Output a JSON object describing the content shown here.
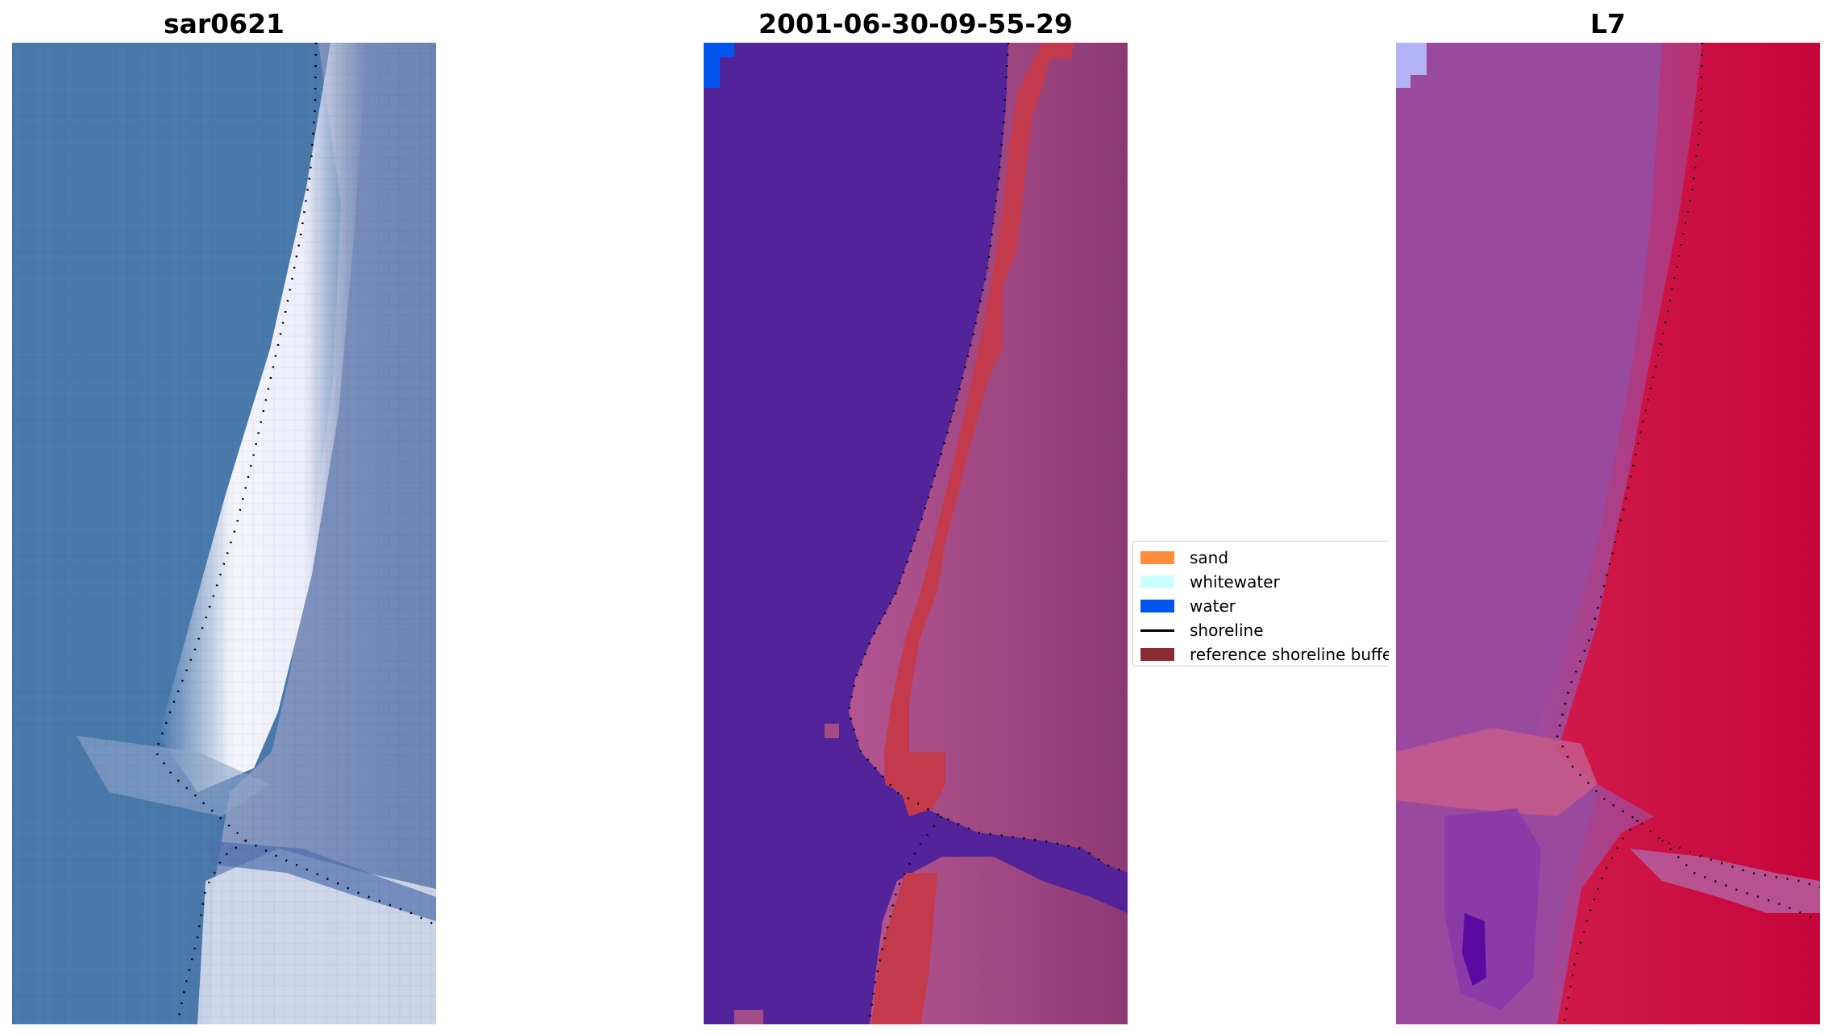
{
  "panels": [
    {
      "id": "rgb",
      "title": "sar0621"
    },
    {
      "id": "classified",
      "title": "2001-06-30-09-55-29"
    },
    {
      "id": "mndwi",
      "title": "L7"
    }
  ],
  "legend": {
    "items": [
      {
        "label": "sand",
        "color": "#ff8c3a",
        "kind": "patch"
      },
      {
        "label": "whitewater",
        "color": "#ccffff",
        "kind": "patch"
      },
      {
        "label": "water",
        "color": "#0055ee",
        "kind": "patch"
      },
      {
        "label": "shoreline",
        "color": "#000000",
        "kind": "line"
      },
      {
        "label": "reference shoreline buffe",
        "color": "#8b2a33",
        "kind": "patch"
      }
    ]
  },
  "colors": {
    "rgb_water": "#4a79ac",
    "rgb_whitewater": "#f2f2fa",
    "rgb_land": "#7f8fb5",
    "class_water": "#53239a",
    "class_buffer": "#c33a4c",
    "class_land": "#a24d88",
    "class_light_water": "#0055ee",
    "l7_water": "#9a4a9e",
    "l7_land": "#c6053a",
    "l7_corner": "#b3b3f5"
  }
}
